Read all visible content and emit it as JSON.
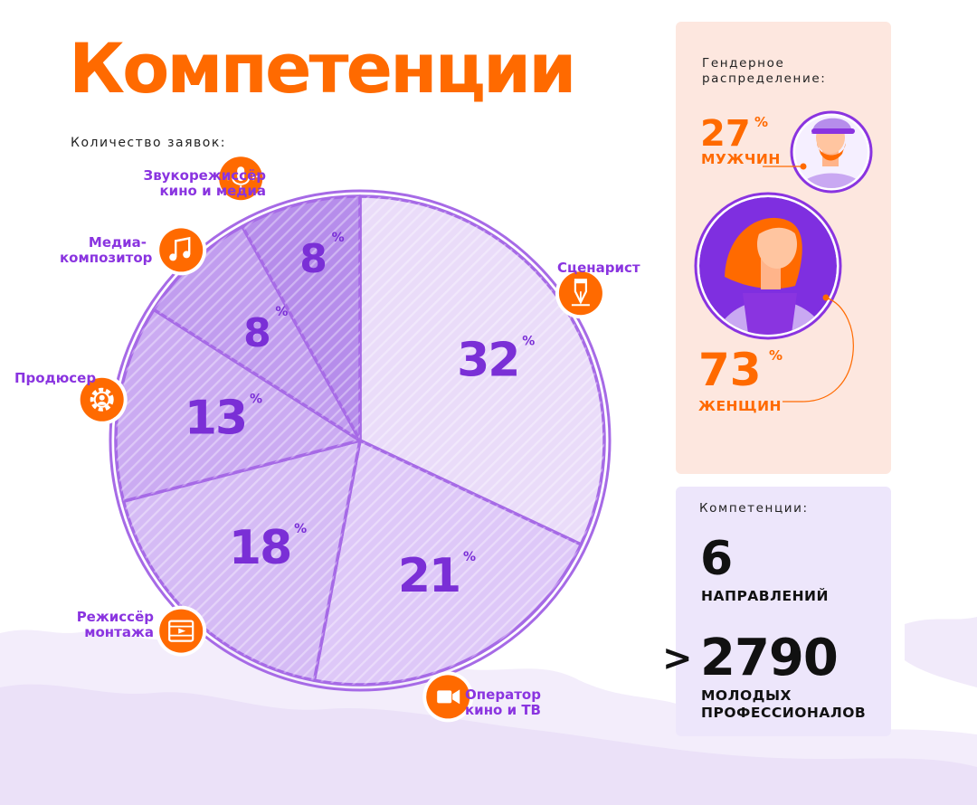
{
  "title": "Компетенции",
  "subtitle": "Количество заявок:",
  "percent_sign": "%",
  "chart_data": {
    "type": "pie",
    "title": "Компетенции",
    "subtitle": "Количество заявок:",
    "unit": "%",
    "slices": [
      {
        "label": "Сценарист",
        "value": 32,
        "icon": "fountain-pen-icon",
        "fill": "#eadcf9"
      },
      {
        "label": "Оператор кино и ТВ",
        "value": 21,
        "icon": "video-camera-icon",
        "fill": "#dec8f8"
      },
      {
        "label": "Режиссёр монтажа",
        "value": 18,
        "icon": "film-frame-icon",
        "fill": "#d5bbf5"
      },
      {
        "label": "Продюсер",
        "value": 13,
        "icon": "producer-gear-icon",
        "fill": "#cbabf2"
      },
      {
        "label": "Медиа-композитор",
        "value": 8,
        "icon": "music-note-icon",
        "fill": "#c19def"
      },
      {
        "label": "Звукорежиссёр кино и медиа",
        "value": 8,
        "icon": "microphone-icon",
        "fill": "#b68deb"
      }
    ]
  },
  "labels": {
    "scenarist": [
      "Сценарист"
    ],
    "operator": [
      "Оператор",
      "кино и ТВ"
    ],
    "montage": [
      "Режиссёр",
      "монтажа"
    ],
    "producer": [
      "Продюсер"
    ],
    "composer": [
      "Медиа-",
      "композитор"
    ],
    "sound": [
      "Звукорежиссёр",
      "кино и медиа"
    ]
  },
  "gender": {
    "caption": [
      "Гендерное",
      "распределение:"
    ],
    "men": {
      "value": "27",
      "label": "МУЖЧИН",
      "percent": 27
    },
    "women": {
      "value": "73",
      "label": "ЖЕНЩИН",
      "percent": 73
    }
  },
  "competencies": {
    "caption": "Компетенции:",
    "directions_value": "6",
    "directions_label": "НАПРАВЛЕНИЙ",
    "prefix": ">",
    "participants_value": "2790",
    "participants_label": [
      "МОЛОДЫХ",
      "ПРОФЕССИОНАЛОВ"
    ]
  },
  "colors": {
    "orange": "#ff6a00",
    "purple": "#8a34e0",
    "pie_stroke": "#a66ae6",
    "gender_panel": "#fde7df",
    "competence_panel": "#ede6fb"
  }
}
